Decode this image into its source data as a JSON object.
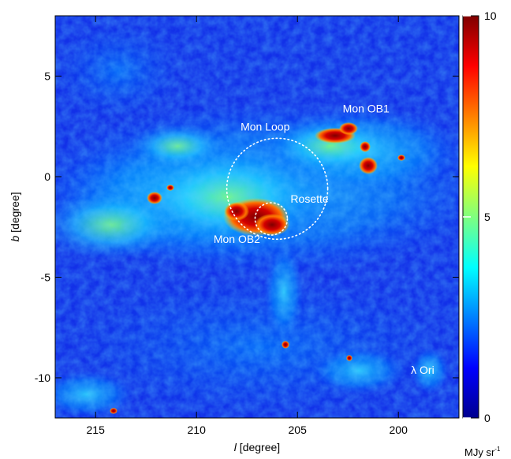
{
  "chart_data": {
    "type": "heatmap",
    "title": "",
    "xlabel_var": "l",
    "xlabel_unit": " [degree]",
    "ylabel_var": "b",
    "ylabel_unit": " [degree]",
    "xlim": [
      217,
      197
    ],
    "ylim": [
      -12,
      8
    ],
    "xticks": [
      {
        "value": 215,
        "label": "215"
      },
      {
        "value": 210,
        "label": "210"
      },
      {
        "value": 205,
        "label": "205"
      },
      {
        "value": 200,
        "label": "200"
      }
    ],
    "yticks": [
      {
        "value": 5,
        "label": "5"
      },
      {
        "value": 0,
        "label": "0"
      },
      {
        "value": -5,
        "label": "-5"
      },
      {
        "value": -10,
        "label": "-10"
      }
    ],
    "colorbar": {
      "min": 0,
      "max": 10,
      "ticks": [
        {
          "value": 10,
          "label": "10"
        },
        {
          "value": 5,
          "label": "5"
        },
        {
          "value": 0,
          "label": "0"
        }
      ],
      "unit_base": "MJy sr",
      "unit_exp": "-1",
      "colormap": "jet"
    },
    "annotations": [
      {
        "label": "Mon OB1",
        "l": 201.6,
        "b": 3.2
      },
      {
        "label": "Mon Loop",
        "l": 206.6,
        "b": 2.3
      },
      {
        "label": "Rosette",
        "l": 204.4,
        "b": -1.3
      },
      {
        "label": "Mon OB2",
        "l": 208.0,
        "b": -3.3
      },
      {
        "label": "λ Ori",
        "l": 198.8,
        "b": -9.8
      }
    ],
    "circles": [
      {
        "name": "Mon Loop",
        "l": 206.0,
        "b": -0.6,
        "radius_deg": 2.5
      },
      {
        "name": "Rosette",
        "l": 206.3,
        "b": -2.1,
        "radius_deg": 0.8
      }
    ]
  }
}
